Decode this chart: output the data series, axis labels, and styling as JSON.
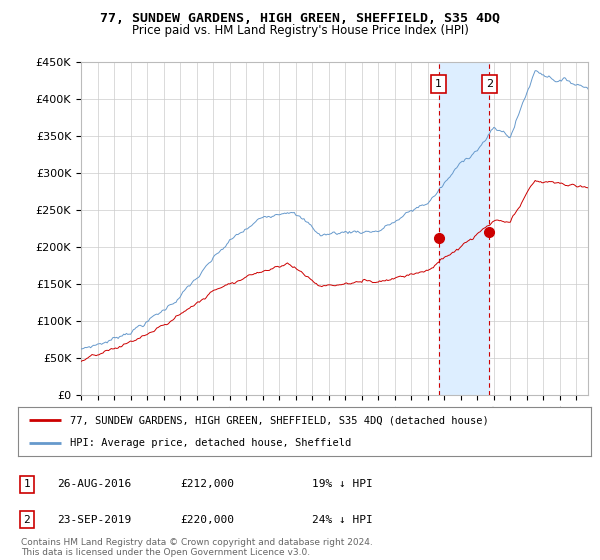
{
  "title": "77, SUNDEW GARDENS, HIGH GREEN, SHEFFIELD, S35 4DQ",
  "subtitle": "Price paid vs. HM Land Registry's House Price Index (HPI)",
  "ylabel_ticks": [
    "£0",
    "£50K",
    "£100K",
    "£150K",
    "£200K",
    "£250K",
    "£300K",
    "£350K",
    "£400K",
    "£450K"
  ],
  "ylim": [
    0,
    450000
  ],
  "xlim_start": 1995.3,
  "xlim_end": 2025.7,
  "sale1": {
    "date_num": 2016.65,
    "price": 212000,
    "label": "1",
    "date_str": "26-AUG-2016",
    "pct": "19%"
  },
  "sale2": {
    "date_num": 2019.73,
    "price": 220000,
    "label": "2",
    "date_str": "23-SEP-2019",
    "pct": "24%"
  },
  "vline_color": "#cc0000",
  "house_line_color": "#cc0000",
  "hpi_line_color": "#6699cc",
  "shade_color": "#ddeeff",
  "background_color": "#ffffff",
  "grid_color": "#cccccc",
  "legend_label_house": "77, SUNDEW GARDENS, HIGH GREEN, SHEFFIELD, S35 4DQ (detached house)",
  "legend_label_hpi": "HPI: Average price, detached house, Sheffield",
  "footer": "Contains HM Land Registry data © Crown copyright and database right 2024.\nThis data is licensed under the Open Government Licence v3.0."
}
